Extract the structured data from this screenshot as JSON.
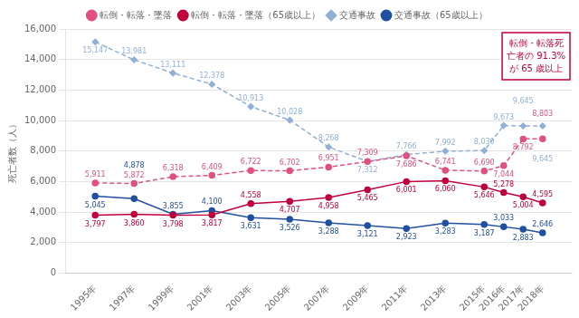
{
  "chart_data": {
    "type": "line",
    "ylabel": "死亡者数（人）",
    "x": [
      1995,
      1997,
      1999,
      2001,
      2003,
      2005,
      2007,
      2009,
      2011,
      2013,
      2015,
      2016,
      2017,
      2018
    ],
    "xlim": [
      1993.5,
      2019.5
    ],
    "xticks": [
      {
        "value": 1995,
        "label": "1995年"
      },
      {
        "value": 1997,
        "label": "1997年"
      },
      {
        "value": 1999,
        "label": "1999年"
      },
      {
        "value": 2001,
        "label": "2001年"
      },
      {
        "value": 2003,
        "label": "2003年"
      },
      {
        "value": 2005,
        "label": "2005年"
      },
      {
        "value": 2007,
        "label": "2007年"
      },
      {
        "value": 2009,
        "label": "2009年"
      },
      {
        "value": 2011,
        "label": "2011年"
      },
      {
        "value": 2013,
        "label": "2013年"
      },
      {
        "value": 2015,
        "label": "2015年"
      },
      {
        "value": 2016,
        "label": "2016年"
      },
      {
        "value": 2017,
        "label": "2017年"
      },
      {
        "value": 2018,
        "label": "2018年"
      }
    ],
    "ylim": [
      0,
      16000
    ],
    "yticks": [
      0,
      {
        "value": 2000,
        "label": "2,000"
      },
      {
        "value": 4000,
        "label": "4,000"
      },
      {
        "value": 6000,
        "label": "6,000"
      },
      {
        "value": 8000,
        "label": "8,000"
      },
      {
        "value": 10000,
        "label": "10,000"
      },
      {
        "value": 12000,
        "label": "12,000"
      },
      {
        "value": 14000,
        "label": "14,000"
      },
      {
        "value": 16000,
        "label": "16,000"
      }
    ],
    "grid": "y",
    "legend": "top",
    "data_labels": true,
    "series": [
      {
        "name": "転倒・転落・墜落",
        "color": "#e05080",
        "marker": "circle",
        "line_style": "dashed",
        "values": [
          5911,
          5872,
          6318,
          6409,
          6722,
          6702,
          6951,
          7309,
          7686,
          6741,
          6690,
          7044,
          8792,
          8803
        ],
        "value_labels": [
          "5,911",
          "5,872",
          "6,318",
          "6,409",
          "6,722",
          "6,702",
          "6,951",
          "7,309",
          "7,686",
          "6,741",
          "6,690",
          "7,044",
          "8,792",
          "8,803"
        ]
      },
      {
        "name": "転倒・転落・墜落（65歳以上）",
        "color": "#c0003c",
        "marker": "circle",
        "line_style": "solid",
        "values": [
          3797,
          3860,
          3798,
          3817,
          4558,
          4707,
          4958,
          5465,
          6001,
          6060,
          5646,
          5278,
          5004,
          4595
        ],
        "value_labels": [
          "3,797",
          "3,860",
          "3,798",
          "3,817",
          "4,558",
          "4,707",
          "4,958",
          "5,465",
          "6,001",
          "6,060",
          "5,646",
          "5,278",
          "5,004",
          "4,595"
        ]
      },
      {
        "name": "交通事故",
        "color": "#90b0d8",
        "marker": "diamond",
        "line_style": "dashed",
        "values": [
          15147,
          13981,
          13111,
          12378,
          10913,
          10028,
          8268,
          7312,
          7766,
          7992,
          8030,
          9673,
          9645,
          9645
        ],
        "value_labels": [
          "15,147",
          "13,981",
          "13,111",
          "12,378",
          "10,913",
          "10,028",
          "8,268",
          "7,312",
          "7,766",
          "7,992",
          "8,030",
          "9,673",
          "9,645",
          "9,645"
        ]
      },
      {
        "name": "交通事故（65歳以上）",
        "color": "#2050a0",
        "marker": "circle",
        "line_style": "solid",
        "values": [
          5045,
          4878,
          3855,
          4100,
          3631,
          3526,
          3288,
          3121,
          2923,
          3283,
          3187,
          3033,
          2883,
          2646
        ],
        "value_labels": [
          "5,045",
          "4,878",
          "3,855",
          "4,100",
          "3,631",
          "3,526",
          "3,288",
          "3,121",
          "2,923",
          "3,283",
          "3,187",
          "3,033",
          "2,883",
          "2,646"
        ]
      }
    ],
    "annotation": {
      "text": "転倒・転落死\n亡者の 91.3%\nが 65 歳以上",
      "color": "#c0003c"
    }
  }
}
